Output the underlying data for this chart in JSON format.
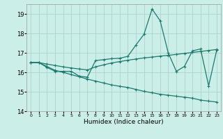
{
  "xlabel": "Humidex (Indice chaleur)",
  "background_color": "#cceee8",
  "grid_color": "#aad4ce",
  "line_color": "#1a7a6e",
  "xlim": [
    -0.5,
    23.5
  ],
  "ylim": [
    14,
    19.5
  ],
  "yticks": [
    14,
    15,
    16,
    17,
    18,
    19
  ],
  "xticks": [
    0,
    1,
    2,
    3,
    4,
    5,
    6,
    7,
    8,
    9,
    10,
    11,
    12,
    13,
    14,
    15,
    16,
    17,
    18,
    19,
    20,
    21,
    22,
    23
  ],
  "line1_x": [
    0,
    1,
    2,
    3,
    4,
    5,
    6,
    7,
    8,
    9,
    10,
    11,
    12,
    13,
    14,
    15,
    16,
    17,
    18,
    19,
    20,
    21,
    22,
    23
  ],
  "line1_y": [
    16.5,
    16.5,
    16.25,
    16.05,
    16.05,
    16.05,
    15.8,
    15.75,
    16.6,
    16.65,
    16.7,
    16.72,
    16.82,
    17.4,
    17.95,
    19.25,
    18.65,
    17.0,
    16.05,
    16.3,
    17.1,
    17.2,
    15.3,
    17.15
  ],
  "line2_x": [
    0,
    1,
    2,
    3,
    4,
    5,
    6,
    7,
    8,
    9,
    10,
    11,
    12,
    13,
    14,
    15,
    16,
    17,
    18,
    19,
    20,
    21,
    22,
    23
  ],
  "line2_y": [
    16.5,
    16.5,
    16.42,
    16.35,
    16.28,
    16.22,
    16.17,
    16.12,
    16.28,
    16.38,
    16.48,
    16.55,
    16.62,
    16.68,
    16.74,
    16.78,
    16.83,
    16.87,
    16.92,
    16.97,
    17.02,
    17.07,
    17.12,
    17.17
  ],
  "line3_x": [
    0,
    1,
    2,
    3,
    4,
    5,
    6,
    7,
    8,
    9,
    10,
    11,
    12,
    13,
    14,
    15,
    16,
    17,
    18,
    19,
    20,
    21,
    22,
    23
  ],
  "line3_y": [
    16.5,
    16.5,
    16.3,
    16.1,
    16.0,
    15.88,
    15.77,
    15.65,
    15.55,
    15.45,
    15.35,
    15.28,
    15.22,
    15.12,
    15.02,
    14.95,
    14.87,
    14.82,
    14.77,
    14.72,
    14.67,
    14.57,
    14.52,
    14.47
  ]
}
